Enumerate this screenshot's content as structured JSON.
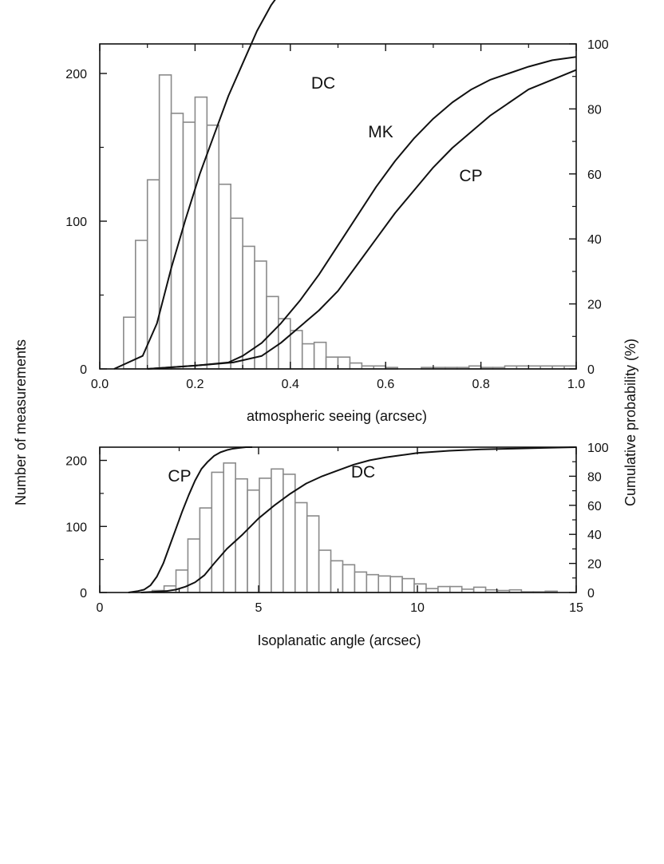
{
  "figure": {
    "left_axis_title": "Number of measurements",
    "right_axis_title": "Cumulative probability (%)"
  },
  "chart_data": [
    {
      "type": "bar",
      "xlabel": "atmospheric seeing (arcsec)",
      "ylabel": "Number of measurements",
      "y2label": "Cumulative probability (%)",
      "xlim": [
        0.0,
        1.0
      ],
      "ylim": [
        0,
        220
      ],
      "y2lim": [
        0,
        100
      ],
      "x_ticks": [
        "0.0",
        "0.2",
        "0.4",
        "0.6",
        "0.8",
        "1.0"
      ],
      "y_ticks": [
        "0",
        "100",
        "200"
      ],
      "y2_ticks": [
        "0",
        "20",
        "40",
        "60",
        "80",
        "100"
      ],
      "bin_width": 0.025,
      "bin_starts": [
        0.05,
        0.075,
        0.1,
        0.125,
        0.15,
        0.175,
        0.2,
        0.225,
        0.25,
        0.275,
        0.3,
        0.325,
        0.35,
        0.375,
        0.4,
        0.425,
        0.45,
        0.475,
        0.5,
        0.525,
        0.55,
        0.575,
        0.6,
        0.625,
        0.65,
        0.675,
        0.7,
        0.725,
        0.75,
        0.775,
        0.8,
        0.825,
        0.85,
        0.875,
        0.9,
        0.925,
        0.95,
        0.975
      ],
      "values": [
        35,
        87,
        128,
        199,
        173,
        167,
        184,
        165,
        125,
        102,
        83,
        73,
        49,
        34,
        26,
        17,
        18,
        8,
        8,
        4,
        2,
        2,
        1,
        0,
        0,
        1,
        1,
        1,
        1,
        2,
        1,
        1,
        2,
        2,
        2,
        2,
        2,
        2
      ],
      "curves": [
        {
          "name": "DC",
          "x": [
            0.03,
            0.09,
            0.12,
            0.15,
            0.18,
            0.21,
            0.24,
            0.27,
            0.3,
            0.33,
            0.36,
            0.39,
            0.42,
            0.46,
            0.5,
            0.55,
            0.6,
            0.7,
            0.8,
            0.9,
            1.0
          ],
          "y": [
            0,
            4,
            14,
            31,
            46,
            60,
            72,
            84,
            94,
            104,
            112,
            118,
            122,
            126,
            128,
            129,
            130,
            130.5,
            131,
            131,
            131
          ]
        },
        {
          "name": "MK",
          "x": [
            0.1,
            0.2,
            0.27,
            0.3,
            0.34,
            0.38,
            0.42,
            0.46,
            0.5,
            0.54,
            0.58,
            0.62,
            0.66,
            0.7,
            0.74,
            0.78,
            0.82,
            0.86,
            0.9,
            0.95,
            1.0
          ],
          "y": [
            0,
            1,
            2,
            4,
            8,
            14,
            21,
            29,
            38,
            47,
            56,
            64,
            71,
            77,
            82,
            86,
            89,
            91,
            93,
            95,
            96
          ]
        },
        {
          "name": "CP",
          "x": [
            0.1,
            0.2,
            0.28,
            0.34,
            0.38,
            0.42,
            0.46,
            0.5,
            0.54,
            0.58,
            0.62,
            0.66,
            0.7,
            0.74,
            0.78,
            0.82,
            0.86,
            0.9,
            0.95,
            1.0
          ],
          "y": [
            0,
            1,
            2,
            4,
            8,
            13,
            18,
            24,
            32,
            40,
            48,
            55,
            62,
            68,
            73,
            78,
            82,
            86,
            89,
            92
          ]
        }
      ],
      "curve_labels": [
        "DC",
        "MK",
        "CP"
      ]
    },
    {
      "type": "bar",
      "xlabel": "Isoplanatic angle (arcsec)",
      "ylabel": "Number of measurements",
      "y2label": "Cumulative probability (%)",
      "xlim": [
        0,
        15
      ],
      "ylim": [
        0,
        220
      ],
      "y2lim": [
        0,
        100
      ],
      "x_ticks": [
        "0",
        "5",
        "10",
        "15"
      ],
      "y_ticks": [
        "0",
        "100",
        "200"
      ],
      "y2_ticks": [
        "0",
        "20",
        "40",
        "60",
        "80",
        "100"
      ],
      "bin_width": 0.375,
      "bin_starts": [
        0.9,
        1.275,
        1.65,
        2.025,
        2.4,
        2.775,
        3.15,
        3.525,
        3.9,
        4.275,
        4.65,
        5.025,
        5.4,
        5.775,
        6.15,
        6.525,
        6.9,
        7.275,
        7.65,
        8.025,
        8.4,
        8.775,
        9.15,
        9.525,
        9.9,
        10.275,
        10.65,
        11.025,
        11.4,
        11.775,
        12.15,
        12.525,
        12.9,
        13.275,
        13.65,
        14.025,
        14.4
      ],
      "values": [
        0,
        0,
        3,
        10,
        34,
        81,
        128,
        182,
        196,
        172,
        155,
        173,
        187,
        179,
        136,
        116,
        64,
        48,
        42,
        31,
        27,
        25,
        24,
        21,
        13,
        6,
        9,
        9,
        5,
        8,
        4,
        3,
        4,
        1,
        1,
        2,
        0
      ],
      "curves": [
        {
          "name": "CP",
          "x": [
            0.9,
            1.2,
            1.4,
            1.6,
            1.8,
            2.0,
            2.2,
            2.4,
            2.6,
            2.8,
            3.0,
            3.2,
            3.4,
            3.6,
            3.8,
            4.0,
            4.2,
            4.4,
            4.6,
            4.8
          ],
          "y": [
            0,
            1,
            2,
            5,
            11,
            20,
            32,
            44,
            56,
            67,
            77,
            85,
            90,
            94,
            96.5,
            98,
            99,
            99.5,
            100,
            100
          ]
        },
        {
          "name": "DC",
          "x": [
            1.3,
            1.7,
            2.1,
            2.4,
            2.7,
            3.0,
            3.3,
            3.6,
            4.0,
            4.5,
            5.0,
            5.5,
            6.0,
            6.5,
            7.0,
            7.5,
            8.0,
            8.5,
            9.0,
            9.5,
            10.0,
            11.0,
            12.0,
            13.0,
            14.0,
            15.0
          ],
          "y": [
            0,
            0.5,
            1,
            2,
            4,
            7,
            12,
            20,
            30,
            40,
            51,
            60,
            68,
            75,
            80,
            84,
            88,
            91,
            93,
            94.5,
            96,
            97.5,
            98.5,
            99,
            99.5,
            100
          ]
        }
      ],
      "curve_labels": [
        "CP",
        "DC"
      ]
    }
  ]
}
